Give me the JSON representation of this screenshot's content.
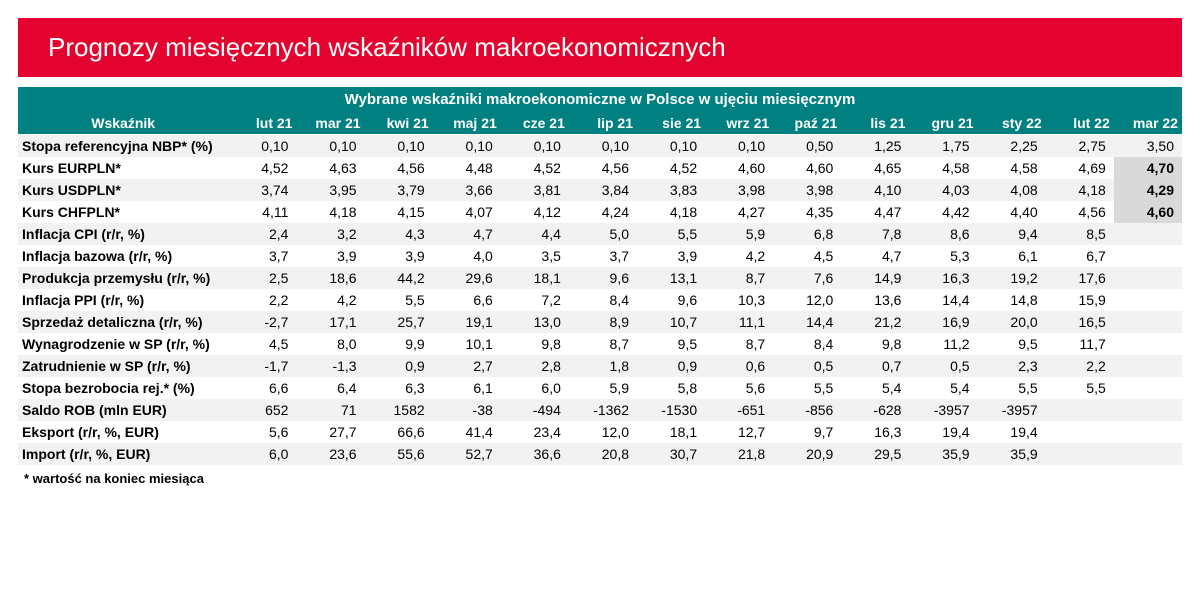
{
  "banner": {
    "text": "Prognozy miesięcznych wskaźników makroekonomicznych",
    "bg_color": "#e4032e",
    "text_color": "#ffffff"
  },
  "table": {
    "super_header": "Wybrane wskaźniki makroekonomiczne w Polsce w ujęciu miesięcznym",
    "header_bg": "#008080",
    "header_text_color": "#ffffff",
    "alt_row_bg": "#f2f2f2",
    "highlight_bg": "#d9d9d9",
    "label_header": "Wskaźnik",
    "columns": [
      "lut 21",
      "mar 21",
      "kwi 21",
      "maj 21",
      "cze 21",
      "lip 21",
      "sie 21",
      "wrz 21",
      "paź 21",
      "lis 21",
      "gru 21",
      "sty 22",
      "lut 22",
      "mar 22"
    ],
    "rows": [
      {
        "label": "Stopa referencyjna NBP* (%)",
        "vals": [
          "0,10",
          "0,10",
          "0,10",
          "0,10",
          "0,10",
          "0,10",
          "0,10",
          "0,10",
          "0,50",
          "1,25",
          "1,75",
          "2,25",
          "2,75",
          "3,50"
        ],
        "highlight_last": false
      },
      {
        "label": "Kurs EURPLN*",
        "vals": [
          "4,52",
          "4,63",
          "4,56",
          "4,48",
          "4,52",
          "4,56",
          "4,52",
          "4,60",
          "4,60",
          "4,65",
          "4,58",
          "4,58",
          "4,69",
          "4,70"
        ],
        "highlight_last": true
      },
      {
        "label": "Kurs USDPLN*",
        "vals": [
          "3,74",
          "3,95",
          "3,79",
          "3,66",
          "3,81",
          "3,84",
          "3,83",
          "3,98",
          "3,98",
          "4,10",
          "4,03",
          "4,08",
          "4,18",
          "4,29"
        ],
        "highlight_last": true
      },
      {
        "label": "Kurs CHFPLN*",
        "vals": [
          "4,11",
          "4,18",
          "4,15",
          "4,07",
          "4,12",
          "4,24",
          "4,18",
          "4,27",
          "4,35",
          "4,47",
          "4,42",
          "4,40",
          "4,56",
          "4,60"
        ],
        "highlight_last": true
      },
      {
        "label": "Inflacja CPI (r/r, %)",
        "vals": [
          "2,4",
          "3,2",
          "4,3",
          "4,7",
          "4,4",
          "5,0",
          "5,5",
          "5,9",
          "6,8",
          "7,8",
          "8,6",
          "9,4",
          "8,5",
          ""
        ],
        "highlight_last": false
      },
      {
        "label": "Inflacja bazowa (r/r, %)",
        "vals": [
          "3,7",
          "3,9",
          "3,9",
          "4,0",
          "3,5",
          "3,7",
          "3,9",
          "4,2",
          "4,5",
          "4,7",
          "5,3",
          "6,1",
          "6,7",
          ""
        ],
        "highlight_last": false
      },
      {
        "label": "Produkcja przemysłu (r/r, %)",
        "vals": [
          "2,5",
          "18,6",
          "44,2",
          "29,6",
          "18,1",
          "9,6",
          "13,1",
          "8,7",
          "7,6",
          "14,9",
          "16,3",
          "19,2",
          "17,6",
          ""
        ],
        "highlight_last": false
      },
      {
        "label": "Inflacja PPI (r/r, %)",
        "vals": [
          "2,2",
          "4,2",
          "5,5",
          "6,6",
          "7,2",
          "8,4",
          "9,6",
          "10,3",
          "12,0",
          "13,6",
          "14,4",
          "14,8",
          "15,9",
          ""
        ],
        "highlight_last": false
      },
      {
        "label": "Sprzedaż detaliczna (r/r, %)",
        "vals": [
          "-2,7",
          "17,1",
          "25,7",
          "19,1",
          "13,0",
          "8,9",
          "10,7",
          "11,1",
          "14,4",
          "21,2",
          "16,9",
          "20,0",
          "16,5",
          ""
        ],
        "highlight_last": false
      },
      {
        "label": "Wynagrodzenie w SP (r/r, %)",
        "vals": [
          "4,5",
          "8,0",
          "9,9",
          "10,1",
          "9,8",
          "8,7",
          "9,5",
          "8,7",
          "8,4",
          "9,8",
          "11,2",
          "9,5",
          "11,7",
          ""
        ],
        "highlight_last": false
      },
      {
        "label": "Zatrudnienie w SP (r/r, %)",
        "vals": [
          "-1,7",
          "-1,3",
          "0,9",
          "2,7",
          "2,8",
          "1,8",
          "0,9",
          "0,6",
          "0,5",
          "0,7",
          "0,5",
          "2,3",
          "2,2",
          ""
        ],
        "highlight_last": false
      },
      {
        "label": "Stopa bezrobocia rej.* (%)",
        "vals": [
          "6,6",
          "6,4",
          "6,3",
          "6,1",
          "6,0",
          "5,9",
          "5,8",
          "5,6",
          "5,5",
          "5,4",
          "5,4",
          "5,5",
          "5,5",
          ""
        ],
        "highlight_last": false
      },
      {
        "label": "Saldo ROB (mln EUR)",
        "vals": [
          "652",
          "71",
          "1582",
          "-38",
          "-494",
          "-1362",
          "-1530",
          "-651",
          "-856",
          "-628",
          "-3957",
          "-3957",
          "",
          ""
        ],
        "highlight_last": false
      },
      {
        "label": "Eksport (r/r, %, EUR)",
        "vals": [
          "5,6",
          "27,7",
          "66,6",
          "41,4",
          "23,4",
          "12,0",
          "18,1",
          "12,7",
          "9,7",
          "16,3",
          "19,4",
          "19,4",
          "",
          ""
        ],
        "highlight_last": false
      },
      {
        "label": "Import (r/r, %, EUR)",
        "vals": [
          "6,0",
          "23,6",
          "55,6",
          "52,7",
          "36,6",
          "20,8",
          "30,7",
          "21,8",
          "20,9",
          "29,5",
          "35,9",
          "35,9",
          "",
          ""
        ],
        "highlight_last": false
      }
    ]
  },
  "footnote": "* wartość na koniec miesiąca"
}
